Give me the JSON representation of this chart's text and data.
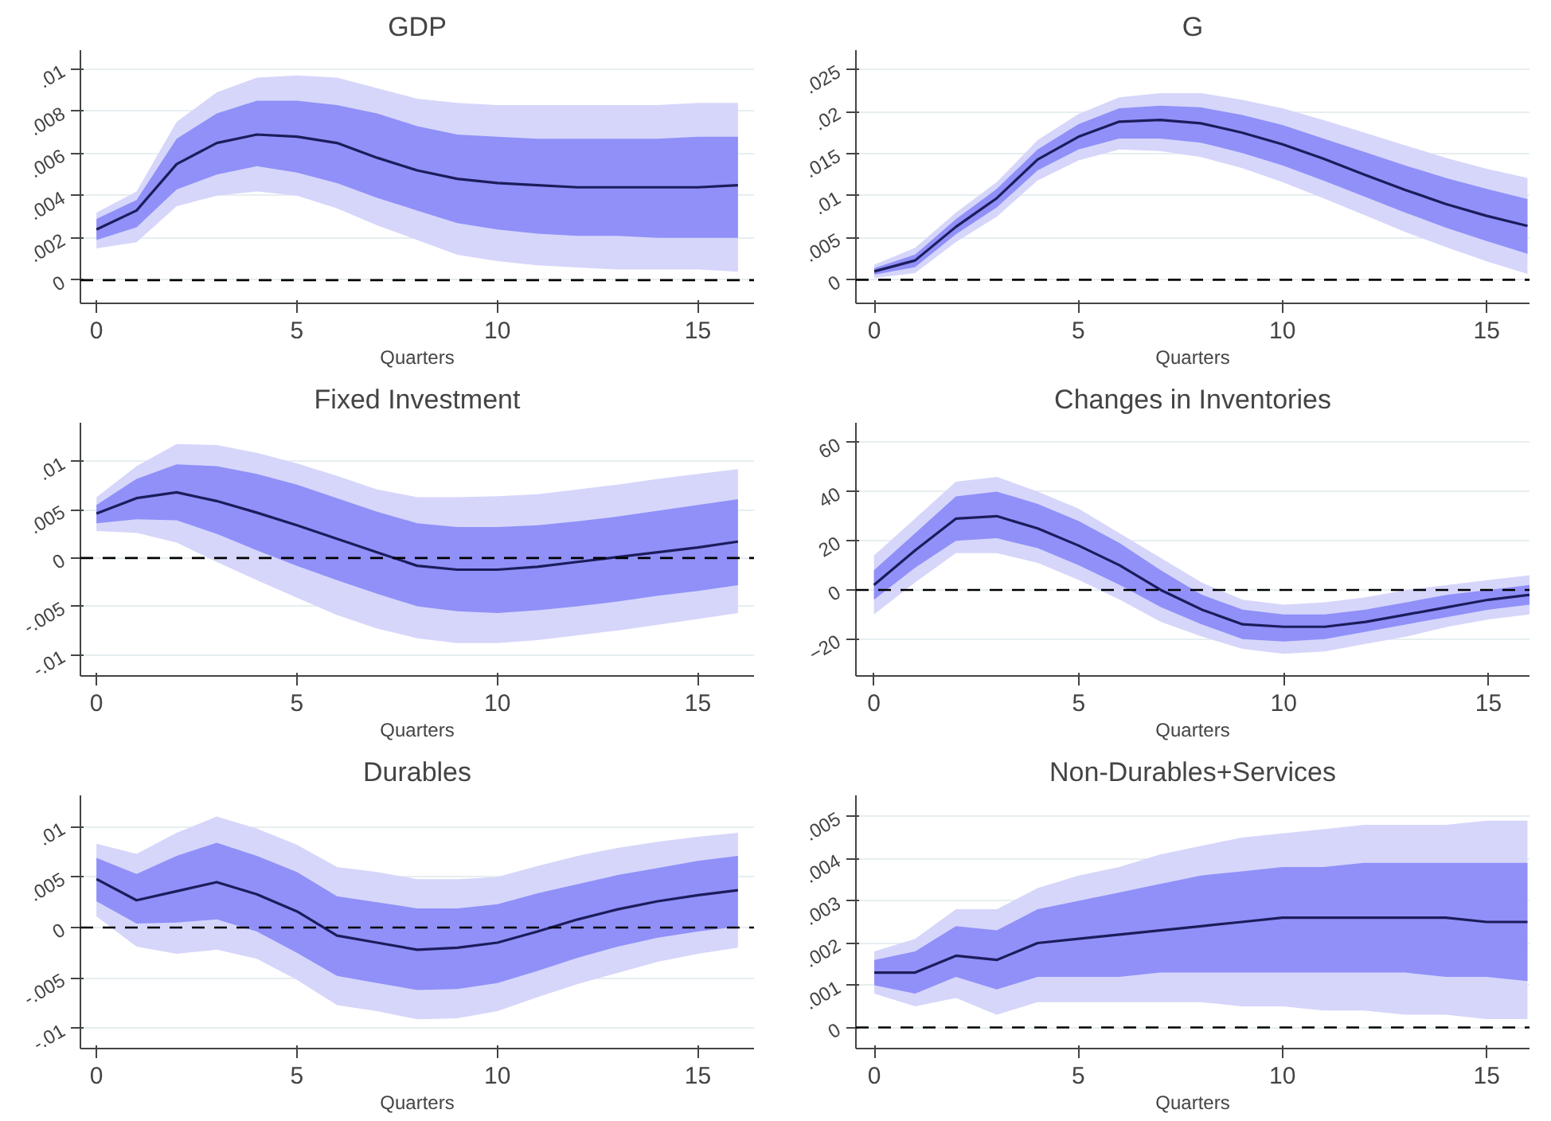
{
  "chart_data": [
    {
      "type": "line",
      "title": "GDP",
      "xlabel": "Quarters",
      "x": [
        0,
        1,
        2,
        3,
        4,
        5,
        6,
        7,
        8,
        9,
        10,
        11,
        12,
        13,
        14,
        15,
        16
      ],
      "xlim": [
        -0.4,
        16.4
      ],
      "xticks": [
        0,
        5,
        10,
        15
      ],
      "ylim": [
        -0.0011,
        0.0109
      ],
      "yticks": [
        {
          "value": 0,
          "label": "0"
        },
        {
          "value": 0.002,
          "label": ".002"
        },
        {
          "value": 0.004,
          "label": ".004"
        },
        {
          "value": 0.006,
          "label": ".006"
        },
        {
          "value": 0.008,
          "label": ".008"
        },
        {
          "value": 0.01,
          "label": ".01"
        }
      ],
      "grid": "y",
      "ref_lines": [
        {
          "axis": "y",
          "value": 0,
          "line_style": "dashed",
          "color": "#000000"
        }
      ],
      "series": [
        {
          "color": "#d6d6fb",
          "values": [
            null,
            null,
            null,
            null,
            null,
            null,
            null,
            null,
            null,
            null,
            null,
            null,
            null,
            null,
            null,
            null,
            null
          ],
          "lower": [
            0.0015,
            0.0018,
            0.0035,
            0.004,
            0.0042,
            0.004,
            0.0034,
            0.0026,
            0.0019,
            0.0012,
            0.0009,
            0.0007,
            0.0006,
            0.0005,
            0.0005,
            0.0005,
            0.0004
          ],
          "upper": [
            0.0032,
            0.0042,
            0.0075,
            0.0089,
            0.0096,
            0.0097,
            0.0096,
            0.0091,
            0.0086,
            0.0084,
            0.0083,
            0.0083,
            0.0083,
            0.0083,
            0.0083,
            0.0084,
            0.0084
          ]
        },
        {
          "color": "#9090f8",
          "values": [
            null,
            null,
            null,
            null,
            null,
            null,
            null,
            null,
            null,
            null,
            null,
            null,
            null,
            null,
            null,
            null,
            null
          ],
          "lower": [
            0.0019,
            0.0025,
            0.0043,
            0.005,
            0.0054,
            0.0051,
            0.0046,
            0.0039,
            0.0033,
            0.0027,
            0.0024,
            0.0022,
            0.0021,
            0.0021,
            0.002,
            0.002,
            0.002
          ],
          "upper": [
            0.0029,
            0.0038,
            0.0067,
            0.0079,
            0.0085,
            0.0085,
            0.0083,
            0.0079,
            0.0073,
            0.0069,
            0.0068,
            0.0067,
            0.0067,
            0.0067,
            0.0067,
            0.0068,
            0.0068
          ]
        },
        {
          "color": "#1c1c5c",
          "values": [
            0.0024,
            0.0033,
            0.0055,
            0.0065,
            0.0069,
            0.0068,
            0.0065,
            0.0058,
            0.0052,
            0.0048,
            0.0046,
            0.0045,
            0.0044,
            0.0044,
            0.0044,
            0.0044,
            0.0045
          ]
        }
      ]
    },
    {
      "type": "line",
      "title": "G",
      "xlabel": "Quarters",
      "x": [
        0,
        1,
        2,
        3,
        4,
        5,
        6,
        7,
        8,
        9,
        10,
        11,
        12,
        13,
        14,
        15,
        16
      ],
      "xlim": [
        -0.45,
        16.05
      ],
      "xticks": [
        0,
        5,
        10,
        15
      ],
      "ylim": [
        -0.0028,
        0.0273
      ],
      "yticks": [
        {
          "value": 0,
          "label": "0"
        },
        {
          "value": 0.005,
          "label": ".005"
        },
        {
          "value": 0.01,
          "label": ".01"
        },
        {
          "value": 0.015,
          "label": ".015"
        },
        {
          "value": 0.02,
          "label": ".02"
        },
        {
          "value": 0.025,
          "label": ".025"
        }
      ],
      "grid": "y",
      "ref_lines": [
        {
          "axis": "y",
          "value": 0,
          "line_style": "dashed",
          "color": "#000000"
        }
      ],
      "series": [
        {
          "color": "#d6d6fb",
          "values": [
            null,
            null,
            null,
            null,
            null,
            null,
            null,
            null,
            null,
            null,
            null,
            null,
            null,
            null,
            null,
            null,
            null
          ],
          "lower": [
            0.0002,
            0.0008,
            0.0045,
            0.0075,
            0.0118,
            0.0142,
            0.0155,
            0.0153,
            0.0146,
            0.0133,
            0.0116,
            0.0097,
            0.0077,
            0.0057,
            0.0039,
            0.0022,
            0.0007
          ],
          "upper": [
            0.0018,
            0.0038,
            0.008,
            0.0116,
            0.0166,
            0.0197,
            0.0217,
            0.0222,
            0.0222,
            0.0214,
            0.0204,
            0.019,
            0.0175,
            0.016,
            0.0145,
            0.0132,
            0.0121
          ]
        },
        {
          "color": "#9090f8",
          "values": [
            null,
            null,
            null,
            null,
            null,
            null,
            null,
            null,
            null,
            null,
            null,
            null,
            null,
            null,
            null,
            null,
            null
          ],
          "lower": [
            0.0006,
            0.0015,
            0.0054,
            0.0086,
            0.013,
            0.0155,
            0.0168,
            0.0168,
            0.0163,
            0.0151,
            0.0136,
            0.0118,
            0.0099,
            0.008,
            0.0062,
            0.0046,
            0.0031
          ],
          "upper": [
            0.0014,
            0.003,
            0.0072,
            0.0108,
            0.0155,
            0.0185,
            0.0204,
            0.0207,
            0.0205,
            0.0196,
            0.0184,
            0.0168,
            0.0152,
            0.0136,
            0.0121,
            0.0108,
            0.0096
          ]
        },
        {
          "color": "#1c1c5c",
          "values": [
            0.001,
            0.0023,
            0.0063,
            0.0097,
            0.0143,
            0.017,
            0.0188,
            0.019,
            0.0186,
            0.0175,
            0.0161,
            0.0144,
            0.0125,
            0.0107,
            0.009,
            0.0076,
            0.0064
          ]
        }
      ]
    },
    {
      "type": "line",
      "title": "Fixed Investment",
      "xlabel": "Quarters",
      "x": [
        0,
        1,
        2,
        3,
        4,
        5,
        6,
        7,
        8,
        9,
        10,
        11,
        12,
        13,
        14,
        15,
        16
      ],
      "xlim": [
        -0.4,
        16.4
      ],
      "xticks": [
        0,
        5,
        10,
        15
      ],
      "ylim": [
        -0.0122,
        0.014
      ],
      "yticks": [
        {
          "value": -0.01,
          "label": "-.01"
        },
        {
          "value": -0.005,
          "label": "-.005"
        },
        {
          "value": 0,
          "label": "0"
        },
        {
          "value": 0.005,
          "label": ".005"
        },
        {
          "value": 0.01,
          "label": ".01"
        }
      ],
      "grid": "y",
      "ref_lines": [
        {
          "axis": "y",
          "value": 0,
          "line_style": "dashed",
          "color": "#000000"
        }
      ],
      "series": [
        {
          "color": "#d6d6fb",
          "values": [
            null,
            null,
            null,
            null,
            null,
            null,
            null,
            null,
            null,
            null,
            null,
            null,
            null,
            null,
            null,
            null,
            null
          ],
          "lower": [
            0.0028,
            0.0026,
            0.0016,
            -0.0004,
            -0.0023,
            -0.0041,
            -0.0059,
            -0.0073,
            -0.0083,
            -0.0088,
            -0.0088,
            -0.0085,
            -0.008,
            -0.0075,
            -0.0069,
            -0.0063,
            -0.0057
          ],
          "upper": [
            0.0063,
            0.0095,
            0.0118,
            0.0117,
            0.0109,
            0.0098,
            0.0085,
            0.0071,
            0.0063,
            0.0063,
            0.0064,
            0.0066,
            0.0071,
            0.0076,
            0.0082,
            0.0087,
            0.0092
          ]
        },
        {
          "color": "#9090f8",
          "values": [
            null,
            null,
            null,
            null,
            null,
            null,
            null,
            null,
            null,
            null,
            null,
            null,
            null,
            null,
            null,
            null,
            null
          ],
          "lower": [
            0.0036,
            0.004,
            0.0039,
            0.0025,
            0.0008,
            -0.0008,
            -0.0023,
            -0.0037,
            -0.005,
            -0.0055,
            -0.0057,
            -0.0054,
            -0.005,
            -0.0045,
            -0.0039,
            -0.0034,
            -0.0028
          ],
          "upper": [
            0.0055,
            0.0082,
            0.0097,
            0.0095,
            0.0087,
            0.0076,
            0.0062,
            0.0048,
            0.0036,
            0.0032,
            0.0032,
            0.0034,
            0.0038,
            0.0043,
            0.0049,
            0.0055,
            0.0061
          ]
        },
        {
          "color": "#1c1c5c",
          "values": [
            0.0046,
            0.0062,
            0.0068,
            0.0059,
            0.0047,
            0.0034,
            0.002,
            0.0006,
            -0.0008,
            -0.0012,
            -0.0012,
            -0.0009,
            -0.0004,
            0.0001,
            0.0006,
            0.0011,
            0.0017
          ]
        }
      ]
    },
    {
      "type": "line",
      "title": "Changes in Inventories",
      "xlabel": "Quarters",
      "x": [
        0,
        1,
        2,
        3,
        4,
        5,
        6,
        7,
        8,
        9,
        10,
        11,
        12,
        13,
        14,
        15,
        16
      ],
      "xlim": [
        -0.44,
        16.0
      ],
      "xticks": [
        0,
        5,
        10,
        15
      ],
      "ylim": [
        -35,
        68
      ],
      "yticks": [
        -20,
        0,
        20,
        40,
        60
      ],
      "grid": "y",
      "ref_lines": [
        {
          "axis": "y",
          "value": 0,
          "line_style": "dashed",
          "color": "#000000"
        }
      ],
      "series": [
        {
          "color": "#d6d6fb",
          "values": [
            null,
            null,
            null,
            null,
            null,
            null,
            null,
            null,
            null,
            null,
            null,
            null,
            null,
            null,
            null,
            null,
            null
          ],
          "lower": [
            -10,
            3,
            15,
            15,
            11,
            4,
            -4,
            -13,
            -19,
            -24,
            -26,
            -25,
            -22,
            -19,
            -15,
            -12,
            -10
          ],
          "upper": [
            14,
            29,
            44,
            46,
            40,
            33,
            23,
            13,
            3,
            -4,
            -6,
            -5,
            -3,
            0,
            2,
            4,
            6
          ]
        },
        {
          "color": "#9090f8",
          "values": [
            null,
            null,
            null,
            null,
            null,
            null,
            null,
            null,
            null,
            null,
            null,
            null,
            null,
            null,
            null,
            null,
            null
          ],
          "lower": [
            -4,
            9,
            20,
            21,
            17,
            10,
            2,
            -7,
            -14,
            -20,
            -21,
            -20,
            -17,
            -14,
            -11,
            -8,
            -6
          ],
          "upper": [
            8,
            23,
            38,
            40,
            35,
            28,
            19,
            8,
            -2,
            -8,
            -10,
            -10,
            -8,
            -5,
            -2,
            0,
            2
          ]
        },
        {
          "color": "#1c1c5c",
          "values": [
            2,
            16,
            29,
            30,
            25,
            18,
            10,
            0,
            -8,
            -14,
            -15,
            -15,
            -13,
            -10,
            -7,
            -4,
            -2
          ]
        }
      ]
    },
    {
      "type": "line",
      "title": "Durables",
      "xlabel": "Quarters",
      "x": [
        0,
        1,
        2,
        3,
        4,
        5,
        6,
        7,
        8,
        9,
        10,
        11,
        12,
        13,
        14,
        15,
        16
      ],
      "xlim": [
        -0.4,
        16.4
      ],
      "xticks": [
        0,
        5,
        10,
        15
      ],
      "ylim": [
        -0.012,
        0.0131
      ],
      "yticks": [
        {
          "value": -0.01,
          "label": "-.01"
        },
        {
          "value": -0.005,
          "label": "-.005"
        },
        {
          "value": 0,
          "label": "0"
        },
        {
          "value": 0.005,
          "label": ".005"
        },
        {
          "value": 0.01,
          "label": ".01"
        }
      ],
      "grid": "y",
      "ref_lines": [
        {
          "axis": "y",
          "value": 0,
          "line_style": "dashed",
          "color": "#000000"
        }
      ],
      "series": [
        {
          "color": "#d6d6fb",
          "values": [
            null,
            null,
            null,
            null,
            null,
            null,
            null,
            null,
            null,
            null,
            null,
            null,
            null,
            null,
            null,
            null,
            null
          ],
          "lower": [
            0.0011,
            -0.0019,
            -0.0026,
            -0.0022,
            -0.0031,
            -0.0052,
            -0.0077,
            -0.0083,
            -0.0091,
            -0.009,
            -0.0083,
            -0.0069,
            -0.0056,
            -0.0045,
            -0.0034,
            -0.0026,
            -0.002
          ],
          "upper": [
            0.0083,
            0.0073,
            0.0094,
            0.011,
            0.0098,
            0.0082,
            0.006,
            0.0055,
            0.0048,
            0.0048,
            0.005,
            0.0061,
            0.0071,
            0.0079,
            0.0085,
            0.009,
            0.0094
          ]
        },
        {
          "color": "#9090f8",
          "values": [
            null,
            null,
            null,
            null,
            null,
            null,
            null,
            null,
            null,
            null,
            null,
            null,
            null,
            null,
            null,
            null,
            null
          ],
          "lower": [
            0.0026,
            0.0004,
            0.0005,
            0.0008,
            -0.0004,
            -0.0025,
            -0.0048,
            -0.0055,
            -0.0062,
            -0.0061,
            -0.0055,
            -0.0043,
            -0.003,
            -0.0019,
            -0.001,
            -0.0004,
            0.0001
          ],
          "upper": [
            0.0069,
            0.0053,
            0.0071,
            0.0084,
            0.0071,
            0.0055,
            0.0031,
            0.0025,
            0.0019,
            0.0019,
            0.0023,
            0.0034,
            0.0043,
            0.0052,
            0.0059,
            0.0066,
            0.0071
          ]
        },
        {
          "color": "#1c1c5c",
          "values": [
            0.0048,
            0.0027,
            0.0036,
            0.0045,
            0.0033,
            0.0016,
            -0.0008,
            -0.0015,
            -0.0022,
            -0.002,
            -0.0015,
            -0.0004,
            0.0008,
            0.0018,
            0.0026,
            0.0032,
            0.0037
          ]
        }
      ]
    },
    {
      "type": "line",
      "title": "Non-Durables+Services",
      "xlabel": "Quarters",
      "x": [
        0,
        1,
        2,
        3,
        4,
        5,
        6,
        7,
        8,
        9,
        10,
        11,
        12,
        13,
        14,
        15,
        16
      ],
      "xlim": [
        -0.45,
        16.05
      ],
      "xticks": [
        0,
        5,
        10,
        15
      ],
      "ylim": [
        -0.0005,
        0.0055
      ],
      "yticks": [
        {
          "value": 0,
          "label": "0"
        },
        {
          "value": 0.001,
          "label": ".001"
        },
        {
          "value": 0.002,
          "label": ".002"
        },
        {
          "value": 0.003,
          "label": ".003"
        },
        {
          "value": 0.004,
          "label": ".004"
        },
        {
          "value": 0.005,
          "label": ".005"
        }
      ],
      "grid": "y",
      "ref_lines": [
        {
          "axis": "y",
          "value": 0,
          "line_style": "dashed",
          "color": "#000000"
        }
      ],
      "series": [
        {
          "color": "#d6d6fb",
          "values": [
            null,
            null,
            null,
            null,
            null,
            null,
            null,
            null,
            null,
            null,
            null,
            null,
            null,
            null,
            null,
            null,
            null
          ],
          "lower": [
            0.0008,
            0.0005,
            0.0007,
            0.0003,
            0.0006,
            0.0006,
            0.0006,
            0.0006,
            0.0006,
            0.0005,
            0.0005,
            0.0004,
            0.0004,
            0.0003,
            0.0003,
            0.0002,
            0.0002
          ],
          "upper": [
            0.0018,
            0.0021,
            0.0028,
            0.0028,
            0.0033,
            0.0036,
            0.0038,
            0.0041,
            0.0043,
            0.0045,
            0.0046,
            0.0047,
            0.0048,
            0.0048,
            0.0048,
            0.0049,
            0.0049
          ]
        },
        {
          "color": "#9090f8",
          "values": [
            null,
            null,
            null,
            null,
            null,
            null,
            null,
            null,
            null,
            null,
            null,
            null,
            null,
            null,
            null,
            null,
            null
          ],
          "lower": [
            0.001,
            0.0008,
            0.0012,
            0.0009,
            0.0012,
            0.0012,
            0.0012,
            0.0013,
            0.0013,
            0.0013,
            0.0013,
            0.0013,
            0.0013,
            0.0013,
            0.0012,
            0.0012,
            0.0011
          ],
          "upper": [
            0.0016,
            0.0018,
            0.0024,
            0.0023,
            0.0028,
            0.003,
            0.0032,
            0.0034,
            0.0036,
            0.0037,
            0.0038,
            0.0038,
            0.0039,
            0.0039,
            0.0039,
            0.0039,
            0.0039
          ]
        },
        {
          "color": "#1c1c5c",
          "values": [
            0.0013,
            0.0013,
            0.0017,
            0.0016,
            0.002,
            0.0021,
            0.0022,
            0.0023,
            0.0024,
            0.0025,
            0.0026,
            0.0026,
            0.0026,
            0.0026,
            0.0026,
            0.0025,
            0.0025
          ]
        }
      ]
    }
  ]
}
